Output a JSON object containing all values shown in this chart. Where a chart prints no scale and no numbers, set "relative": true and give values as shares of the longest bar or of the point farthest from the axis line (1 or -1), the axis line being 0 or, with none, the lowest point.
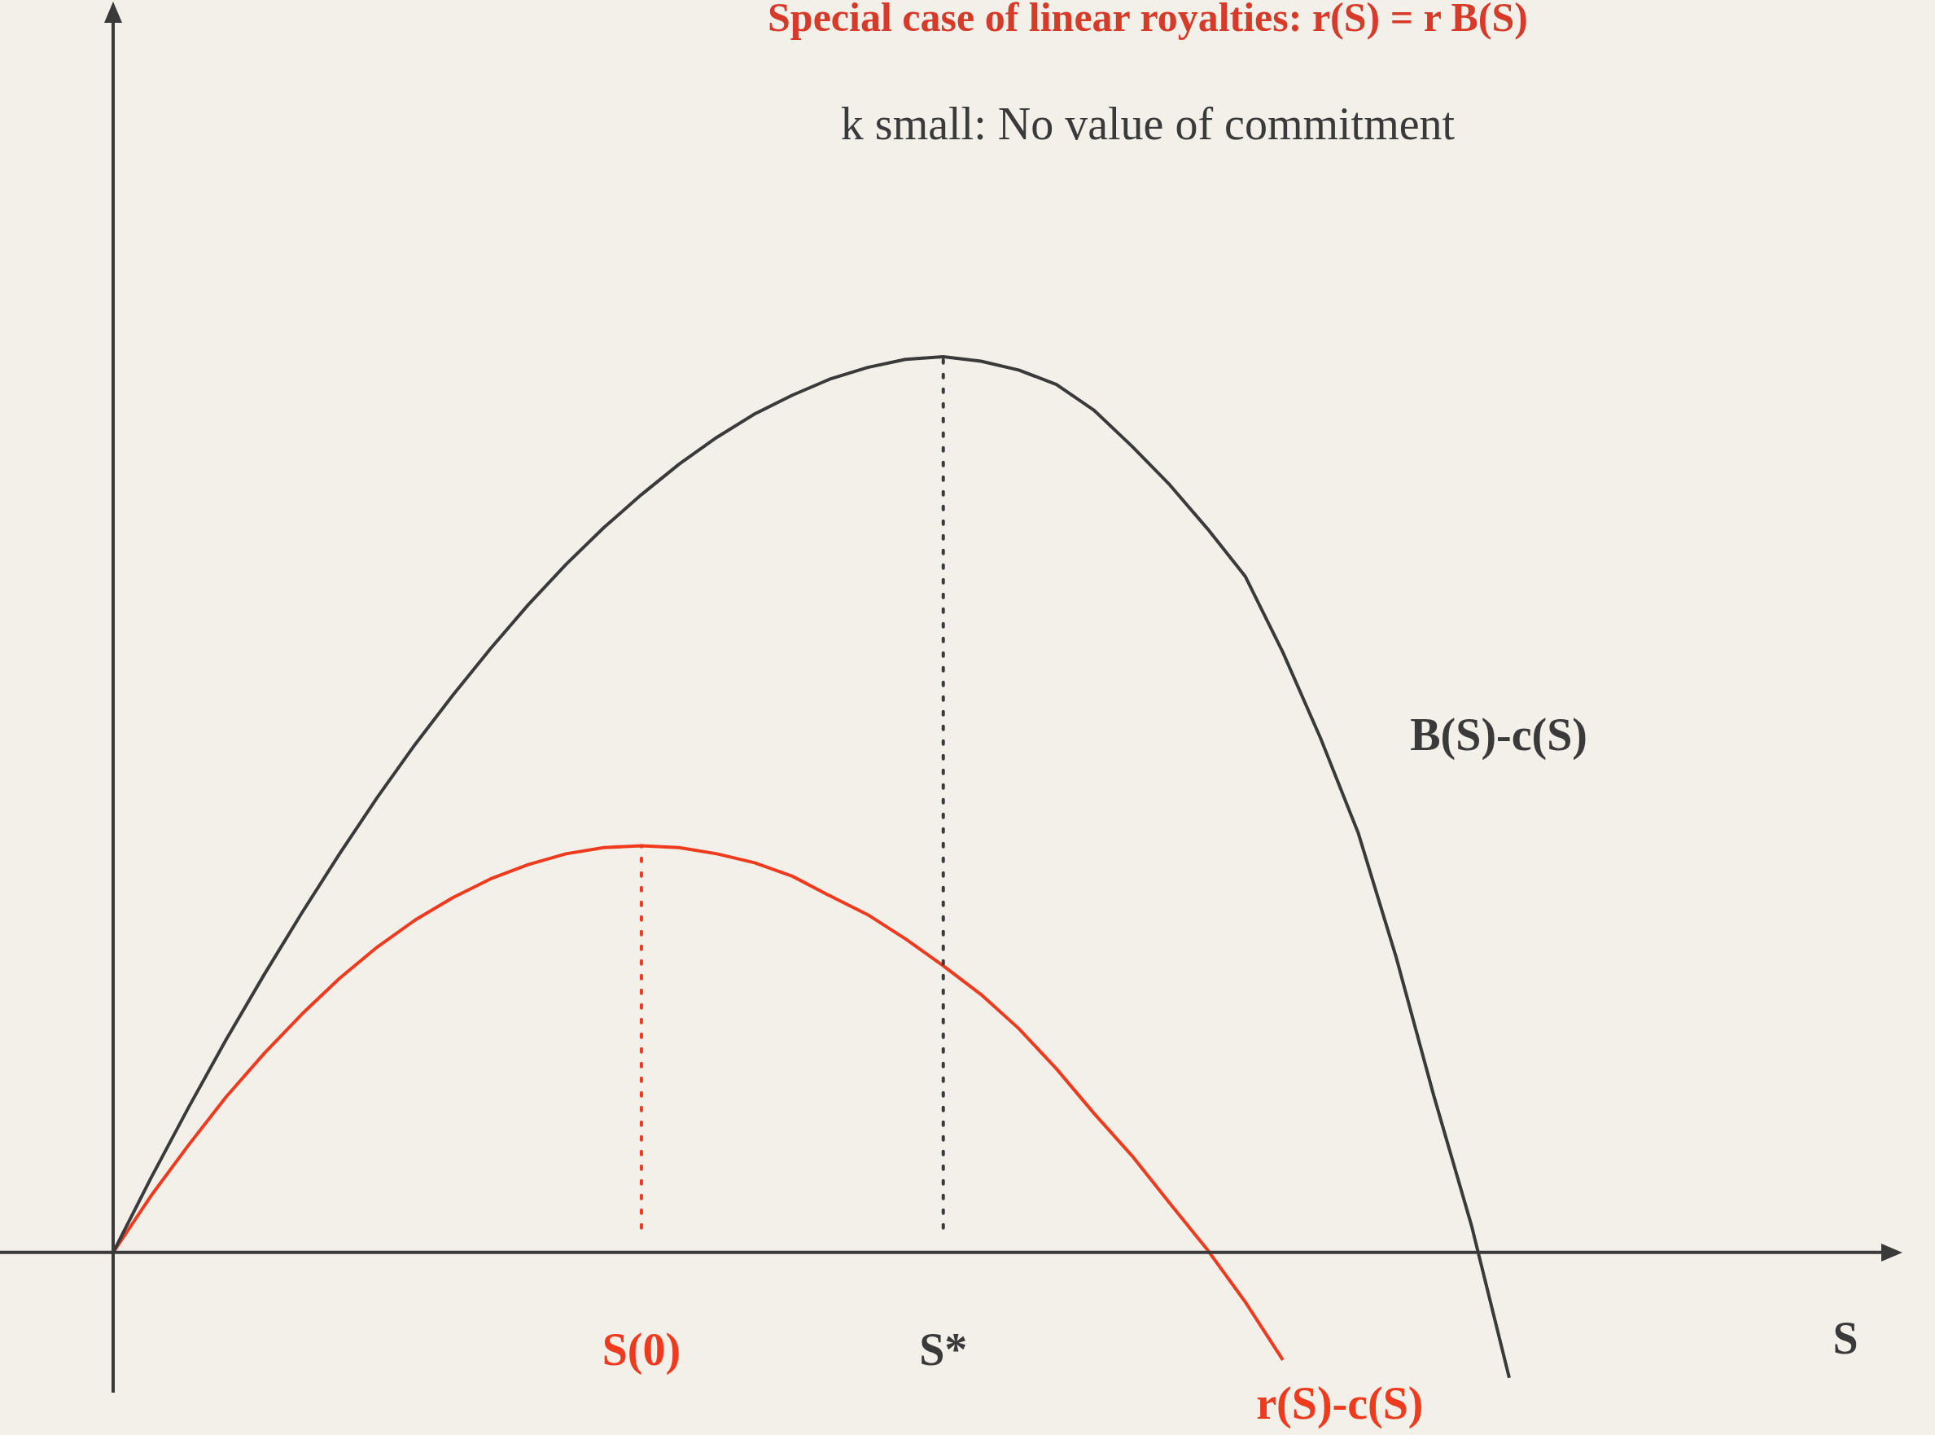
{
  "chart_data": {
    "type": "line",
    "title": "Special case of linear royalties: r(S) = r B(S)",
    "subtitle": "k small: No value of commitment",
    "annotations": [
      "S"
    ],
    "relative": true,
    "tick_labels": "x",
    "legend": false,
    "marker": "none",
    "line_style": "solid",
    "categories": [
      null,
      null,
      null,
      null,
      null,
      null,
      null,
      null,
      null,
      null,
      null,
      null,
      null,
      null,
      "S(0)",
      null,
      null,
      null,
      null,
      null,
      null,
      null,
      "S*",
      null,
      null,
      null,
      null,
      null,
      null,
      null,
      null,
      null,
      null,
      null,
      null,
      null,
      null,
      null
    ],
    "series": [
      {
        "name": "B(S)-c(S)",
        "color": "#3a3a3a",
        "values": [
          0,
          0.083,
          0.162,
          0.238,
          0.31,
          0.379,
          0.445,
          0.508,
          0.567,
          0.622,
          0.674,
          0.723,
          0.768,
          0.809,
          0.846,
          0.88,
          0.91,
          0.936,
          0.957,
          0.975,
          0.988,
          0.997,
          1,
          0.995,
          0.985,
          0.969,
          0.94,
          0.9,
          0.857,
          0.808,
          0.755,
          0.67,
          0.574,
          0.468,
          0.33,
          0.175,
          0.03,
          -0.14
        ]
      },
      {
        "name": "r(S)-c(S)",
        "color": "#f03a1e",
        "values": [
          0,
          0.063,
          0.12,
          0.174,
          0.222,
          0.266,
          0.306,
          0.341,
          0.371,
          0.396,
          0.417,
          0.433,
          0.445,
          0.452,
          0.454,
          0.452,
          0.445,
          0.435,
          0.42,
          0.398,
          0.377,
          0.35,
          0.32,
          0.288,
          0.25,
          0.205,
          0.155,
          0.108,
          0.055,
          0.003,
          -0.055,
          -0.12,
          null,
          null,
          null,
          null,
          null,
          null
        ]
      }
    ],
    "ref_lines": [
      {
        "axis": "x",
        "value": "S(0)",
        "color": "#f03a1e",
        "line_style": "dotted"
      },
      {
        "axis": "x",
        "value": "S*",
        "color": "#3a3a3a",
        "line_style": "dotted"
      }
    ]
  }
}
